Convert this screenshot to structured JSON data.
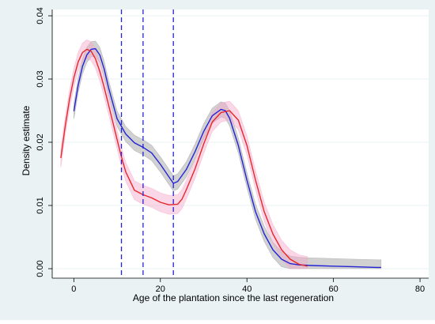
{
  "chart_data": {
    "type": "line",
    "title": "",
    "xlabel": "Age of the plantation since the last regeneration",
    "ylabel": "Density estimate",
    "xlim": [
      -5,
      82
    ],
    "ylim": [
      -0.0015,
      0.041
    ],
    "x_ticks": [
      0,
      20,
      40,
      60,
      80
    ],
    "x_tick_labels": [
      "0",
      "20",
      "40",
      "60",
      "80"
    ],
    "y_ticks": [
      0,
      0.01,
      0.02,
      0.03,
      0.04
    ],
    "y_tick_labels": [
      "0.00",
      "0.01",
      "0.02",
      "0.03",
      "0.04"
    ],
    "grid": "horizontal",
    "legend": "none",
    "colors": {
      "blue": "#2323d6",
      "red": "#e8262b",
      "band_blue": "#9a9a9a",
      "band_red": "#f4a6c8",
      "vline": "#2323d6",
      "plot_bg": "#ffffff",
      "frame_bg": "#eaf2f3"
    },
    "vlines": [
      11,
      16,
      23
    ],
    "series": [
      {
        "color": "#2323d6",
        "band_color": "#9a9a9a",
        "band_width": 0.0012,
        "x": [
          0,
          1,
          2,
          3,
          4,
          5,
          6,
          7,
          8,
          10,
          12,
          14,
          16,
          18,
          20,
          22,
          23,
          24,
          26,
          28,
          30,
          32,
          34,
          35,
          36,
          38,
          40,
          42,
          44,
          46,
          48,
          50,
          52,
          55,
          60,
          65,
          70,
          71
        ],
        "y": [
          0.0249,
          0.029,
          0.032,
          0.0338,
          0.0347,
          0.0348,
          0.0338,
          0.0316,
          0.0287,
          0.0237,
          0.0213,
          0.0199,
          0.0192,
          0.0183,
          0.0165,
          0.0145,
          0.0135,
          0.0138,
          0.0157,
          0.0185,
          0.0217,
          0.0242,
          0.0252,
          0.025,
          0.0238,
          0.0195,
          0.014,
          0.009,
          0.0055,
          0.003,
          0.0015,
          0.0008,
          0.0006,
          0.0005,
          0.0004,
          0.0003,
          0.0002,
          0.0002
        ]
      },
      {
        "color": "#e8262b",
        "band_color": "#f4a6c8",
        "band_width": 0.0015,
        "x": [
          -3,
          -2,
          -1,
          0,
          1,
          2,
          3,
          4,
          5,
          6,
          7,
          8,
          9,
          10,
          11,
          12,
          14,
          16,
          18,
          20,
          22,
          24,
          25,
          26,
          28,
          30,
          32,
          34,
          36,
          38,
          40,
          42,
          44,
          46,
          48,
          50,
          52,
          54
        ],
        "y": [
          0.0175,
          0.0225,
          0.0268,
          0.0302,
          0.0327,
          0.0342,
          0.0347,
          0.0344,
          0.0332,
          0.0312,
          0.0287,
          0.026,
          0.0232,
          0.0204,
          0.0177,
          0.0153,
          0.0124,
          0.0117,
          0.0112,
          0.0105,
          0.0101,
          0.0102,
          0.011,
          0.0125,
          0.0158,
          0.0197,
          0.0232,
          0.0247,
          0.025,
          0.0235,
          0.0195,
          0.014,
          0.009,
          0.0055,
          0.003,
          0.0015,
          0.0007,
          0.0004
        ]
      }
    ]
  }
}
